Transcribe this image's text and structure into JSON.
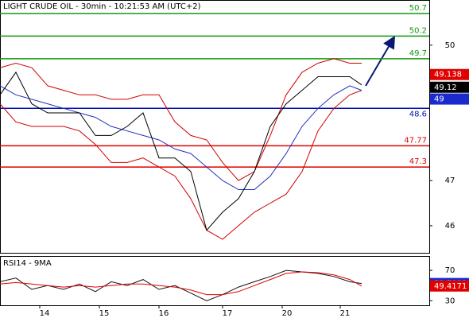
{
  "chart_data": [
    {
      "type": "line",
      "title": "LIGHT CRUDE OIL - 30min - 10:21:53 AM (UTC+2)",
      "x": [
        0,
        4,
        8,
        12,
        16,
        20,
        24,
        28,
        32,
        36,
        40,
        44,
        48,
        52,
        56,
        60,
        64,
        68,
        72,
        76,
        80,
        84,
        88,
        91
      ],
      "series": [
        {
          "color": "#d00000",
          "values": [
            49.5,
            49.6,
            49.5,
            49.1,
            49.0,
            48.9,
            48.9,
            48.8,
            48.8,
            48.9,
            48.9,
            48.3,
            48.0,
            47.9,
            47.4,
            47.0,
            47.2,
            48.0,
            48.9,
            49.4,
            49.6,
            49.7,
            49.6,
            49.6
          ]
        },
        {
          "color": "#d00000",
          "values": [
            48.7,
            48.3,
            48.2,
            48.2,
            48.2,
            48.1,
            47.8,
            47.4,
            47.4,
            47.5,
            47.3,
            47.1,
            46.6,
            45.9,
            45.7,
            46.0,
            46.3,
            46.5,
            46.7,
            47.2,
            48.1,
            48.6,
            48.9,
            49.0
          ]
        },
        {
          "color": "#2030c0",
          "values": [
            49.1,
            48.9,
            48.8,
            48.7,
            48.6,
            48.5,
            48.4,
            48.2,
            48.1,
            48.0,
            47.9,
            47.7,
            47.6,
            47.3,
            47.0,
            46.8,
            46.8,
            47.1,
            47.6,
            48.2,
            48.6,
            48.9,
            49.1,
            49
          ]
        },
        {
          "color": "#000000",
          "values": [
            48.9,
            49.4,
            48.7,
            48.5,
            48.5,
            48.5,
            48.0,
            48.0,
            48.2,
            48.5,
            47.5,
            47.5,
            47.2,
            45.9,
            46.3,
            46.6,
            47.2,
            48.2,
            48.7,
            49.0,
            49.3,
            49.3,
            49.3,
            49.12
          ]
        }
      ],
      "levels": [
        {
          "value": 50.7,
          "color": "#119911"
        },
        {
          "value": 50.2,
          "color": "#119911"
        },
        {
          "value": 49.7,
          "color": "#119911"
        },
        {
          "value": 48.6,
          "color": "#0010b0"
        },
        {
          "value": 47.77,
          "color": "#e00000"
        },
        {
          "value": 47.3,
          "color": "#e00000"
        }
      ],
      "price_labels": [
        {
          "value": 49.138,
          "color": "#e00000"
        }
      ],
      "xlim": [
        0,
        108
      ],
      "ylim": [
        45.4,
        51
      ],
      "yticks": [
        46,
        47,
        49,
        50
      ]
    },
    {
      "type": "line",
      "title": "RSI14 - 9MA",
      "x": [
        0,
        4,
        8,
        12,
        16,
        20,
        24,
        28,
        32,
        36,
        40,
        44,
        48,
        52,
        56,
        60,
        64,
        68,
        72,
        76,
        80,
        84,
        88,
        91
      ],
      "series": [
        {
          "color": "#111111",
          "values": [
            55,
            60,
            45,
            50,
            45,
            52,
            42,
            55,
            50,
            58,
            45,
            50,
            40,
            30,
            38,
            48,
            55,
            62,
            70,
            68,
            66,
            62,
            55,
            52.7033
          ]
        },
        {
          "color": "#e00000",
          "values": [
            52,
            54,
            52,
            50,
            48,
            50,
            48,
            50,
            52,
            52,
            50,
            48,
            44,
            38,
            38,
            42,
            50,
            58,
            66,
            68,
            67,
            64,
            58,
            49.4171
          ]
        }
      ],
      "xlim": [
        0,
        108
      ],
      "ylim": [
        24,
        89
      ],
      "yticks": [
        30,
        70
      ],
      "xticks": [
        {
          "value": 10,
          "label": "14"
        },
        {
          "value": 25,
          "label": "15"
        },
        {
          "value": 40,
          "label": "16"
        },
        {
          "value": 56,
          "label": "17"
        },
        {
          "value": 71,
          "label": "20"
        },
        {
          "value": 85.6,
          "label": "21"
        }
      ]
    }
  ]
}
